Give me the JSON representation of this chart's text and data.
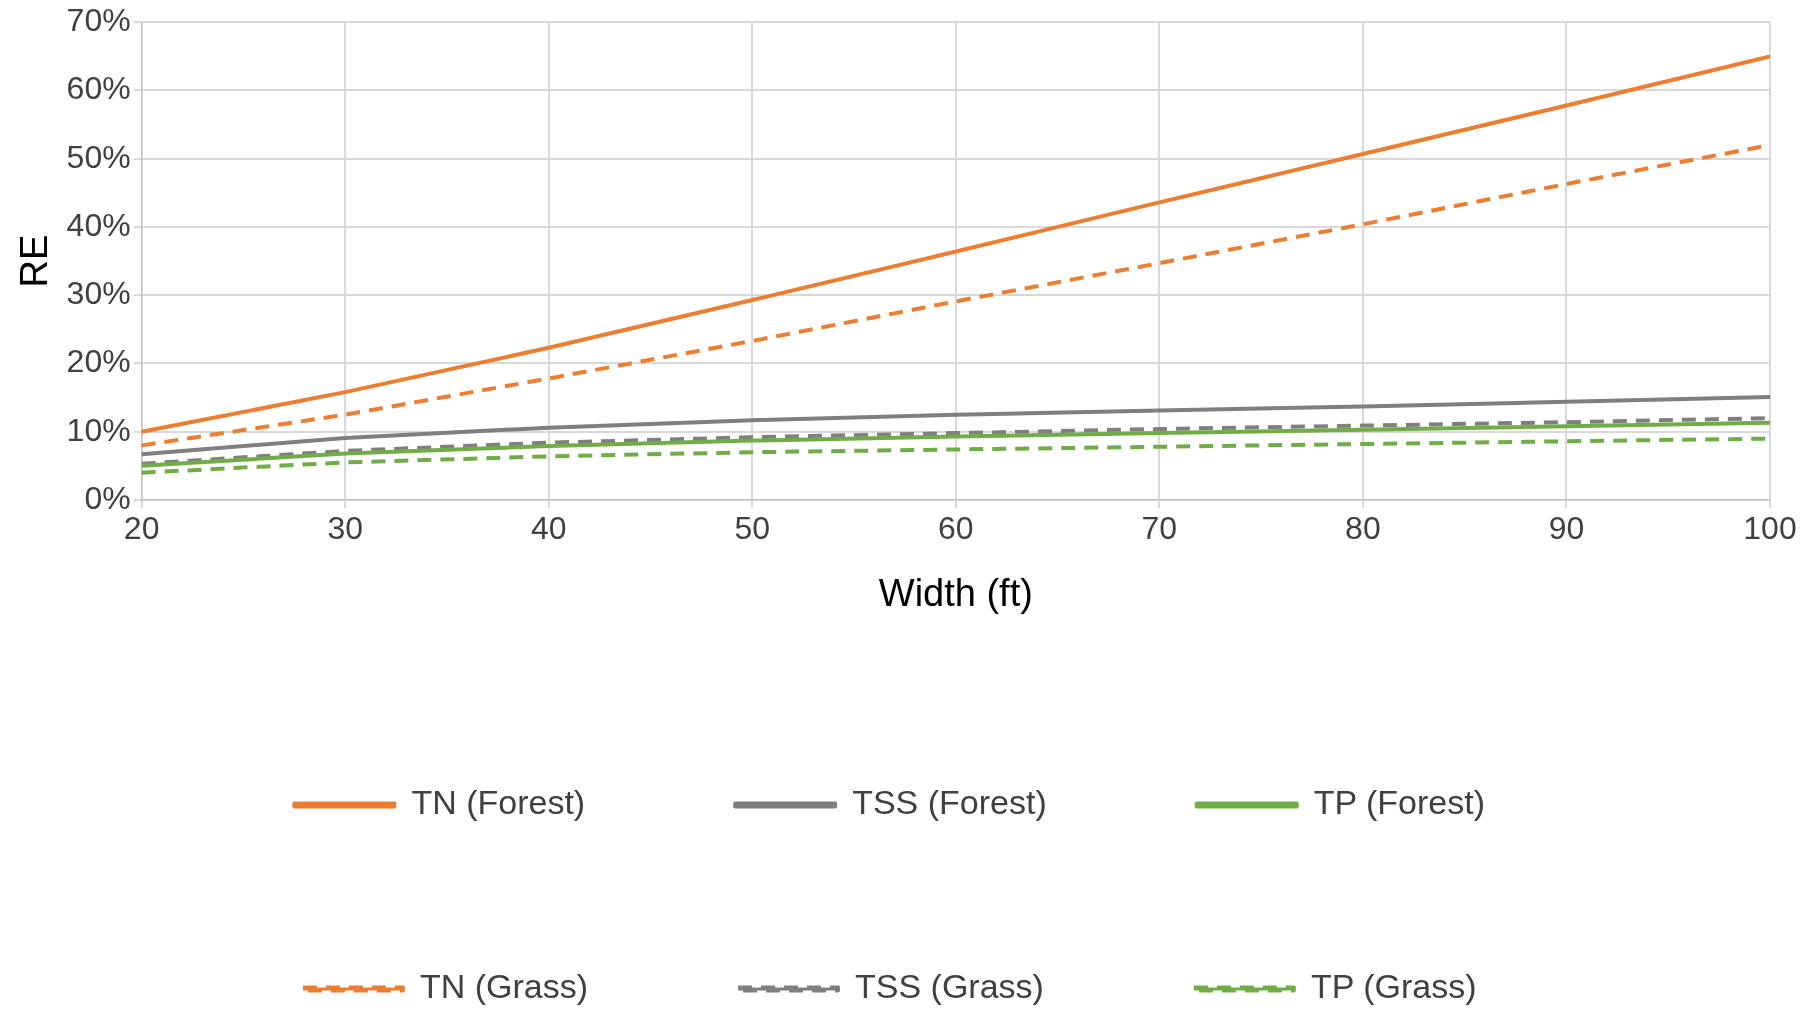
{
  "chart_data": {
    "type": "line",
    "xlabel": "Width (ft)",
    "ylabel": "RE",
    "x": [
      20,
      30,
      40,
      50,
      60,
      70,
      80,
      90,
      100
    ],
    "xlim": [
      20,
      100
    ],
    "xticks": [
      20,
      30,
      40,
      50,
      60,
      70,
      80,
      90,
      100
    ],
    "ylim": [
      0,
      70
    ],
    "yticks": [
      {
        "value": 0,
        "label": "0%"
      },
      {
        "value": 10,
        "label": "10%"
      },
      {
        "value": 20,
        "label": "20%"
      },
      {
        "value": 30,
        "label": "30%"
      },
      {
        "value": 40,
        "label": "40%"
      },
      {
        "value": 50,
        "label": "50%"
      },
      {
        "value": 60,
        "label": "60%"
      },
      {
        "value": 70,
        "label": "70%"
      }
    ],
    "grid": true,
    "legend": "bottom",
    "marker": "none",
    "series": [
      {
        "name": "TN (Forest)",
        "color": "#ed7d31",
        "line_style": "solid",
        "values": [
          10,
          15.8,
          22.3,
          29.3,
          36.4,
          43.6,
          50.7,
          57.8,
          65
        ]
      },
      {
        "name": "TSS (Forest)",
        "color": "#7f7f7f",
        "line_style": "solid",
        "values": [
          6.7,
          9.1,
          10.6,
          11.7,
          12.5,
          13.1,
          13.7,
          14.4,
          15.1
        ]
      },
      {
        "name": "TP (Forest)",
        "color": "#70ad47",
        "line_style": "solid",
        "values": [
          5,
          6.8,
          7.9,
          8.7,
          9.3,
          9.8,
          10.3,
          10.8,
          11.3
        ]
      },
      {
        "name": "TN (Grass)",
        "color": "#ed7d31",
        "line_style": "dashed",
        "values": [
          8,
          12.5,
          17.8,
          23.3,
          29.1,
          34.7,
          40.4,
          46.3,
          52
        ]
      },
      {
        "name": "TSS (Grass)",
        "color": "#7f7f7f",
        "line_style": "dashed",
        "values": [
          5.3,
          7.2,
          8.4,
          9.2,
          9.8,
          10.4,
          10.9,
          11.4,
          12
        ]
      },
      {
        "name": "TP (Grass)",
        "color": "#70ad47",
        "line_style": "dashed",
        "values": [
          4,
          5.5,
          6.4,
          7,
          7.4,
          7.8,
          8.2,
          8.6,
          9
        ]
      }
    ]
  }
}
